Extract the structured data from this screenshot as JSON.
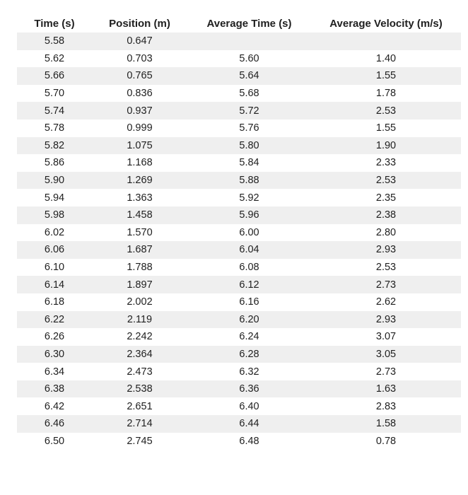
{
  "colors": {
    "background": "#ffffff",
    "stripe": "#efefef",
    "text": "#1f1f1f"
  },
  "table": {
    "headers": [
      "Time (s)",
      "Position (m)",
      "Average Time (s)",
      "Average Velocity (m/s)"
    ],
    "rows": [
      [
        "5.58",
        "0.647",
        "",
        ""
      ],
      [
        "5.62",
        "0.703",
        "5.60",
        "1.40"
      ],
      [
        "5.66",
        "0.765",
        "5.64",
        "1.55"
      ],
      [
        "5.70",
        "0.836",
        "5.68",
        "1.78"
      ],
      [
        "5.74",
        "0.937",
        "5.72",
        "2.53"
      ],
      [
        "5.78",
        "0.999",
        "5.76",
        "1.55"
      ],
      [
        "5.82",
        "1.075",
        "5.80",
        "1.90"
      ],
      [
        "5.86",
        "1.168",
        "5.84",
        "2.33"
      ],
      [
        "5.90",
        "1.269",
        "5.88",
        "2.53"
      ],
      [
        "5.94",
        "1.363",
        "5.92",
        "2.35"
      ],
      [
        "5.98",
        "1.458",
        "5.96",
        "2.38"
      ],
      [
        "6.02",
        "1.570",
        "6.00",
        "2.80"
      ],
      [
        "6.06",
        "1.687",
        "6.04",
        "2.93"
      ],
      [
        "6.10",
        "1.788",
        "6.08",
        "2.53"
      ],
      [
        "6.14",
        "1.897",
        "6.12",
        "2.73"
      ],
      [
        "6.18",
        "2.002",
        "6.16",
        "2.62"
      ],
      [
        "6.22",
        "2.119",
        "6.20",
        "2.93"
      ],
      [
        "6.26",
        "2.242",
        "6.24",
        "3.07"
      ],
      [
        "6.30",
        "2.364",
        "6.28",
        "3.05"
      ],
      [
        "6.34",
        "2.473",
        "6.32",
        "2.73"
      ],
      [
        "6.38",
        "2.538",
        "6.36",
        "1.63"
      ],
      [
        "6.42",
        "2.651",
        "6.40",
        "2.83"
      ],
      [
        "6.46",
        "2.714",
        "6.44",
        "1.58"
      ],
      [
        "6.50",
        "2.745",
        "6.48",
        "0.78"
      ]
    ]
  },
  "chart_data": {
    "type": "table",
    "title": "",
    "columns": [
      "Time (s)",
      "Position (m)",
      "Average Time (s)",
      "Average Velocity (m/s)"
    ],
    "time_s": [
      5.58,
      5.62,
      5.66,
      5.7,
      5.74,
      5.78,
      5.82,
      5.86,
      5.9,
      5.94,
      5.98,
      6.02,
      6.06,
      6.1,
      6.14,
      6.18,
      6.22,
      6.26,
      6.3,
      6.34,
      6.38,
      6.42,
      6.46,
      6.5
    ],
    "position_m": [
      0.647,
      0.703,
      0.765,
      0.836,
      0.937,
      0.999,
      1.075,
      1.168,
      1.269,
      1.363,
      1.458,
      1.57,
      1.687,
      1.788,
      1.897,
      2.002,
      2.119,
      2.242,
      2.364,
      2.473,
      2.538,
      2.651,
      2.714,
      2.745
    ],
    "average_time_s": [
      null,
      5.6,
      5.64,
      5.68,
      5.72,
      5.76,
      5.8,
      5.84,
      5.88,
      5.92,
      5.96,
      6.0,
      6.04,
      6.08,
      6.12,
      6.16,
      6.2,
      6.24,
      6.28,
      6.32,
      6.36,
      6.4,
      6.44,
      6.48
    ],
    "average_velocity_ms": [
      null,
      1.4,
      1.55,
      1.78,
      2.53,
      1.55,
      1.9,
      2.33,
      2.53,
      2.35,
      2.38,
      2.8,
      2.93,
      2.53,
      2.73,
      2.62,
      2.93,
      3.07,
      3.05,
      2.73,
      1.63,
      2.83,
      1.58,
      0.78
    ],
    "layout_hints": {
      "grid": false,
      "row_striping": "first data row shaded, alternating light gray",
      "alignment": "all cells centered"
    }
  }
}
